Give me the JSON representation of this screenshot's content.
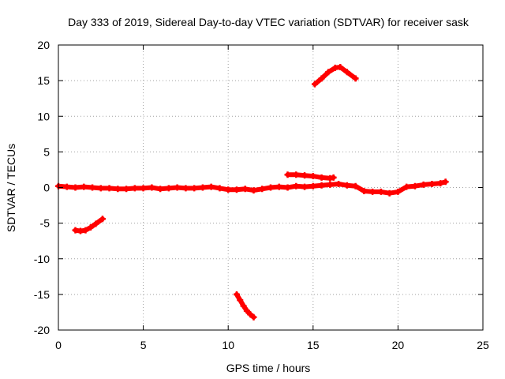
{
  "chart_data": {
    "type": "scatter",
    "title": "Day 333 of 2019, Sidereal Day-to-day VTEC variation (SDTVAR) for receiver sask",
    "xlabel": "GPS time / hours",
    "ylabel": "SDTVAR / TECUs",
    "xlim": [
      0,
      25
    ],
    "ylim": [
      -20,
      20
    ],
    "xticks": [
      "0",
      "5",
      "10",
      "15",
      "20",
      "25"
    ],
    "yticks": [
      "-20",
      "-15",
      "-10",
      "-5",
      "0",
      "5",
      "10",
      "15",
      "20"
    ],
    "grid": true,
    "marker_color": "#ff0000",
    "series": [
      {
        "name": "main-band",
        "x": [
          0,
          0.5,
          1,
          1.5,
          2,
          2.5,
          3,
          3.5,
          4,
          4.5,
          5,
          5.5,
          6,
          6.5,
          7,
          7.5,
          8,
          8.5,
          9,
          9.5,
          10,
          10.5,
          11,
          11.5,
          12,
          12.5,
          13,
          13.5,
          14,
          14.5,
          15,
          15.5,
          16,
          16.5,
          17,
          17.5,
          18,
          18.5,
          19,
          19.5,
          20,
          20.5,
          21,
          21.5,
          22,
          22.5,
          22.8
        ],
        "y": [
          0.2,
          0.1,
          0.0,
          0.1,
          0.0,
          -0.1,
          -0.1,
          -0.2,
          -0.2,
          -0.1,
          -0.1,
          0.0,
          -0.2,
          -0.1,
          0.0,
          -0.1,
          -0.1,
          0.0,
          0.1,
          -0.1,
          -0.3,
          -0.3,
          -0.2,
          -0.4,
          -0.2,
          0.0,
          0.1,
          0.0,
          0.2,
          0.1,
          0.2,
          0.3,
          0.4,
          0.5,
          0.3,
          0.2,
          -0.5,
          -0.6,
          -0.6,
          -0.8,
          -0.6,
          0.1,
          0.2,
          0.4,
          0.5,
          0.6,
          0.8
        ]
      },
      {
        "name": "upper-segment-13-16h",
        "x": [
          13.5,
          14,
          14.5,
          15,
          15.5,
          16,
          16.2
        ],
        "y": [
          1.8,
          1.8,
          1.7,
          1.6,
          1.4,
          1.3,
          1.4
        ]
      },
      {
        "name": "lower-segment-1-2.6h",
        "x": [
          1.0,
          1.3,
          1.6,
          1.9,
          2.2,
          2.6
        ],
        "y": [
          -6.0,
          -6.1,
          -6.0,
          -5.6,
          -5.1,
          -4.4
        ]
      },
      {
        "name": "falling-segment-10.5-11.5h",
        "x": [
          10.5,
          10.7,
          10.9,
          11.1,
          11.3,
          11.5
        ],
        "y": [
          -15.0,
          -15.8,
          -16.6,
          -17.3,
          -17.8,
          -18.2
        ]
      },
      {
        "name": "arc-segment-15-17.5h",
        "x": [
          15.1,
          15.5,
          15.9,
          16.3,
          16.6,
          17.0,
          17.5
        ],
        "y": [
          14.5,
          15.3,
          16.2,
          16.8,
          16.9,
          16.2,
          15.3
        ]
      }
    ]
  }
}
